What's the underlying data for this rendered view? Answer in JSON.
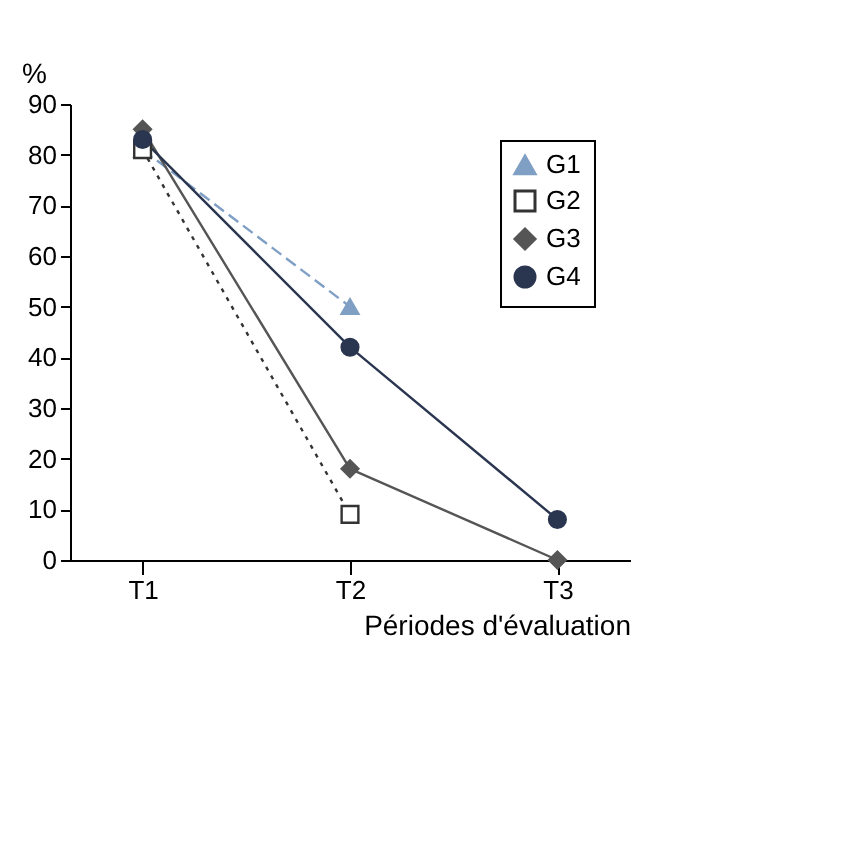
{
  "chart_data": {
    "type": "line",
    "ylabel": "%",
    "xlabel": "Périodes d'évaluation",
    "categories": [
      "T1",
      "T2",
      "T3"
    ],
    "ylim": [
      0,
      90
    ],
    "yticks": [
      0,
      10,
      20,
      30,
      40,
      50,
      60,
      70,
      80,
      90
    ],
    "grid": false,
    "legend": "top right",
    "series": [
      {
        "name": "G1",
        "color": "#7f9fc4",
        "marker": "triangle",
        "line_style": "dashed",
        "values": [
          81,
          50,
          null
        ]
      },
      {
        "name": "G2",
        "color": "#333333",
        "marker": "square",
        "line_style": "dotted",
        "values": [
          81,
          9,
          null
        ]
      },
      {
        "name": "G3",
        "color": "#555555",
        "marker": "diamond",
        "line_style": "solid",
        "values": [
          85,
          18,
          0
        ]
      },
      {
        "name": "G4",
        "color": "#2a3550",
        "marker": "circle",
        "line_style": "solid",
        "values": [
          83,
          42,
          8
        ]
      }
    ]
  }
}
